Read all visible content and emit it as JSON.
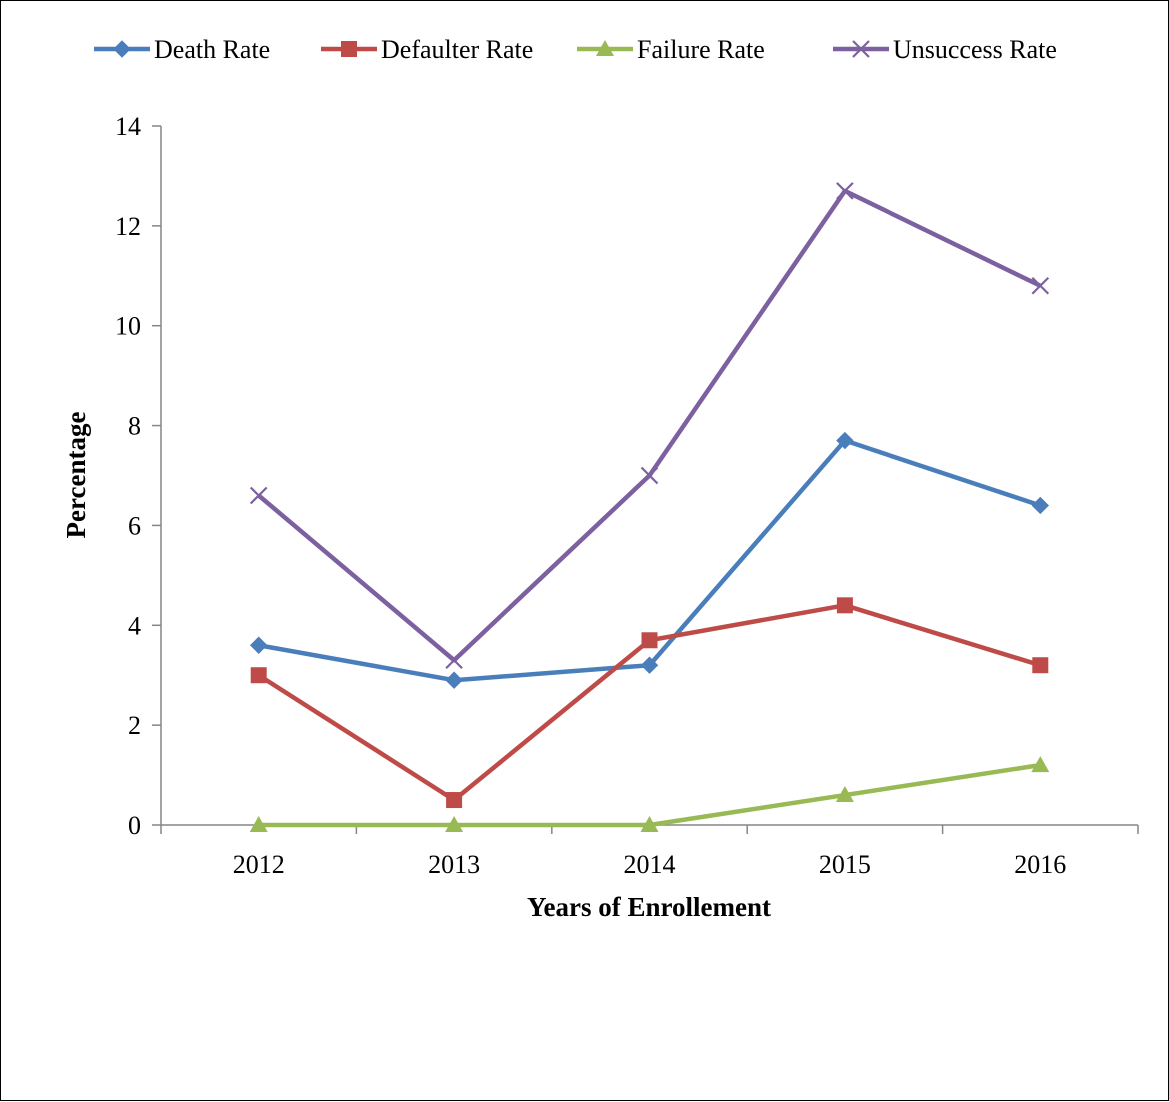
{
  "chart_data": {
    "type": "line",
    "title": "",
    "xlabel": "Years of Enrollement",
    "ylabel": "Percentage",
    "categories": [
      "2012",
      "2013",
      "2014",
      "2015",
      "2016"
    ],
    "ylim": [
      0,
      14
    ],
    "yticks": [
      0,
      2,
      4,
      6,
      8,
      10,
      12,
      14
    ],
    "grid": false,
    "legend_position": "top",
    "series": [
      {
        "name": "Death Rate",
        "marker": "diamond",
        "color": "#4a7ebb",
        "values": [
          3.6,
          2.9,
          3.2,
          7.7,
          6.4
        ]
      },
      {
        "name": "Defaulter Rate",
        "marker": "square",
        "color": "#be4b48",
        "values": [
          3.0,
          0.5,
          3.7,
          4.4,
          3.2
        ]
      },
      {
        "name": "Failure Rate",
        "marker": "triangle",
        "color": "#98b954",
        "values": [
          0,
          0,
          0,
          0.6,
          1.2
        ]
      },
      {
        "name": "Unsuccess Rate",
        "marker": "x",
        "color": "#7d60a0",
        "values": [
          6.6,
          3.3,
          7.0,
          12.7,
          10.8
        ]
      }
    ]
  }
}
